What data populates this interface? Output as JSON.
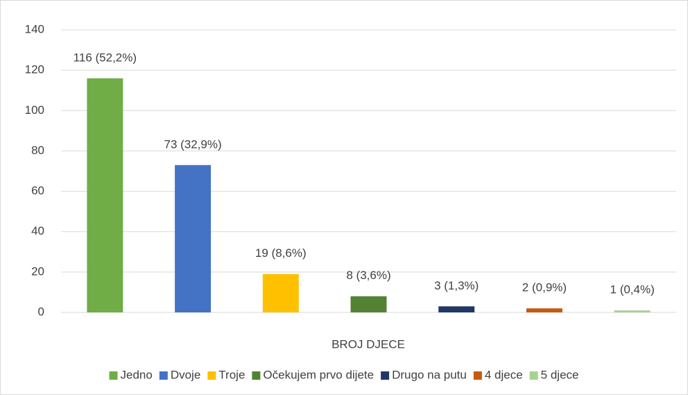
{
  "chart_data": {
    "type": "bar",
    "categories": [
      "Jedno",
      "Dvoje",
      "Troje",
      "Očekujem prvo dijete",
      "Drugo na putu",
      "4 djece",
      "5 djece"
    ],
    "values": [
      116,
      73,
      19,
      8,
      3,
      2,
      1
    ],
    "value_labels": [
      "116 (52,2%)",
      "73 (32,9%)",
      "19 (8,6%)",
      "8 (3,6%)",
      "3 (1,3%)",
      "2 (0,9%)",
      "1 (0,4%)"
    ],
    "colors": [
      "#70ad47",
      "#4472c4",
      "#ffc000",
      "#548235",
      "#203864",
      "#c55a11",
      "#a9d18e"
    ],
    "xlabel": "BROJ DJECE",
    "ylim": [
      0,
      140
    ],
    "yticks": [
      0,
      20,
      40,
      60,
      80,
      100,
      120,
      140
    ],
    "grid": true,
    "legend": "bottom"
  }
}
